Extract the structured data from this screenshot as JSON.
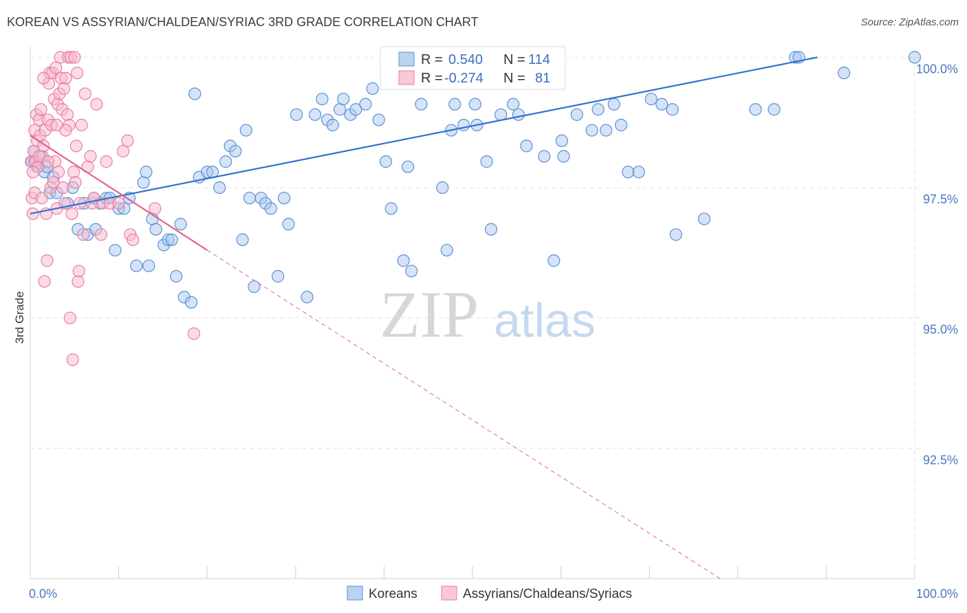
{
  "title": "KOREAN VS ASSYRIAN/CHALDEAN/SYRIAC 3RD GRADE CORRELATION CHART",
  "source": "Source: ZipAtlas.com",
  "watermark": {
    "zip": "ZIP",
    "atlas": "atlas"
  },
  "colors": {
    "koreans_fill": "#a9c8ee",
    "koreans_stroke": "#5b8fd6",
    "koreans_line": "#2f72cf",
    "assyrian_fill": "#f7b9cd",
    "assyrian_stroke": "#e87ea0",
    "assyrian_line": "#e0628f",
    "grid": "#e3e3e3",
    "tick_label": "#4a78c2"
  },
  "legend": {
    "rows": [
      {
        "r_label": "R = ",
        "r_value": "0.540",
        "n_label": "N = ",
        "n_value": "114"
      },
      {
        "r_label": "R = ",
        "r_value": "-0.274",
        "n_label": "N = ",
        "n_value": "81"
      }
    ]
  },
  "bottom_legend": [
    "Koreans",
    "Assyrians/Chaldeans/Syriacs"
  ],
  "chart_data": {
    "type": "scatter",
    "xlabel": "",
    "ylabel": "3rd Grade",
    "x_tick_labels": [
      "0.0%",
      "100.0%"
    ],
    "y_tick_labels": [
      "100.0%",
      "97.5%",
      "95.0%",
      "92.5%"
    ],
    "y_ticks": [
      100.0,
      97.5,
      95.0,
      92.5
    ],
    "xlim": [
      0,
      100
    ],
    "ylim": [
      90.0,
      100.15
    ],
    "grid": true,
    "series": [
      {
        "name": "Koreans",
        "r": 0.54,
        "n": 114,
        "trend": {
          "x": [
            0,
            89
          ],
          "y": [
            97.0,
            100.0
          ],
          "style": "solid"
        },
        "points": [
          [
            0.2,
            98.0
          ],
          [
            0.4,
            98.2
          ],
          [
            0.5,
            98.0
          ],
          [
            0.8,
            97.9
          ],
          [
            1.2,
            98.1
          ],
          [
            1.6,
            97.8
          ],
          [
            1.9,
            97.9
          ],
          [
            2.2,
            97.4
          ],
          [
            2.6,
            97.7
          ],
          [
            3.0,
            97.4
          ],
          [
            4.2,
            97.2
          ],
          [
            4.8,
            97.5
          ],
          [
            5.4,
            96.7
          ],
          [
            6.1,
            97.2
          ],
          [
            6.5,
            96.6
          ],
          [
            7.2,
            97.3
          ],
          [
            7.4,
            96.7
          ],
          [
            7.9,
            97.2
          ],
          [
            8.6,
            97.3
          ],
          [
            9.0,
            97.3
          ],
          [
            9.6,
            96.3
          ],
          [
            10.0,
            97.1
          ],
          [
            10.6,
            97.1
          ],
          [
            11.2,
            97.3
          ],
          [
            12.0,
            96.0
          ],
          [
            12.8,
            97.6
          ],
          [
            13.1,
            97.8
          ],
          [
            13.4,
            96.0
          ],
          [
            13.8,
            96.9
          ],
          [
            14.2,
            96.7
          ],
          [
            15.1,
            96.4
          ],
          [
            15.6,
            96.5
          ],
          [
            16.0,
            96.5
          ],
          [
            16.5,
            95.8
          ],
          [
            17.0,
            96.8
          ],
          [
            17.4,
            95.4
          ],
          [
            18.2,
            95.3
          ],
          [
            18.6,
            99.3
          ],
          [
            19.1,
            97.7
          ],
          [
            20.0,
            97.8
          ],
          [
            20.6,
            97.8
          ],
          [
            21.4,
            97.5
          ],
          [
            22.1,
            98.0
          ],
          [
            22.6,
            98.3
          ],
          [
            23.2,
            98.2
          ],
          [
            24.0,
            96.5
          ],
          [
            24.4,
            98.6
          ],
          [
            24.8,
            97.3
          ],
          [
            25.3,
            95.6
          ],
          [
            26.1,
            97.3
          ],
          [
            26.6,
            97.2
          ],
          [
            27.2,
            97.1
          ],
          [
            28.0,
            95.8
          ],
          [
            28.7,
            97.3
          ],
          [
            29.2,
            96.8
          ],
          [
            30.1,
            98.9
          ],
          [
            31.3,
            95.4
          ],
          [
            32.2,
            98.9
          ],
          [
            33.0,
            99.2
          ],
          [
            33.6,
            98.8
          ],
          [
            34.2,
            98.7
          ],
          [
            35.0,
            99.0
          ],
          [
            35.4,
            99.2
          ],
          [
            36.2,
            98.9
          ],
          [
            36.8,
            99.0
          ],
          [
            37.9,
            99.1
          ],
          [
            38.7,
            99.4
          ],
          [
            39.4,
            98.8
          ],
          [
            40.2,
            98.0
          ],
          [
            40.8,
            97.1
          ],
          [
            41.6,
            100.0
          ],
          [
            42.2,
            96.1
          ],
          [
            42.7,
            97.9
          ],
          [
            43.1,
            95.9
          ],
          [
            44.2,
            99.1
          ],
          [
            44.9,
            100.0
          ],
          [
            45.7,
            100.0
          ],
          [
            46.4,
            100.0
          ],
          [
            46.6,
            97.5
          ],
          [
            47.1,
            96.3
          ],
          [
            47.6,
            98.6
          ],
          [
            48.0,
            99.1
          ],
          [
            49.0,
            98.7
          ],
          [
            50.3,
            99.1
          ],
          [
            50.5,
            98.7
          ],
          [
            51.6,
            98.0
          ],
          [
            52.1,
            96.7
          ],
          [
            53.2,
            98.9
          ],
          [
            54.6,
            99.1
          ],
          [
            55.2,
            98.9
          ],
          [
            56.1,
            98.3
          ],
          [
            58.1,
            98.1
          ],
          [
            59.2,
            96.1
          ],
          [
            60.1,
            98.4
          ],
          [
            60.3,
            98.1
          ],
          [
            61.8,
            98.9
          ],
          [
            63.5,
            98.6
          ],
          [
            64.2,
            99.0
          ],
          [
            65.1,
            98.6
          ],
          [
            66.0,
            99.1
          ],
          [
            66.8,
            98.7
          ],
          [
            67.6,
            97.8
          ],
          [
            68.8,
            97.8
          ],
          [
            70.2,
            99.2
          ],
          [
            71.4,
            99.1
          ],
          [
            72.6,
            99.0
          ],
          [
            73.0,
            96.6
          ],
          [
            76.2,
            96.9
          ],
          [
            82.0,
            99.0
          ],
          [
            84.1,
            99.0
          ],
          [
            86.5,
            100.0
          ],
          [
            86.9,
            100.0
          ],
          [
            92.0,
            99.7
          ],
          [
            100.0,
            100.0
          ]
        ]
      },
      {
        "name": "Assyrians/Chaldeans/Syriacs",
        "r": -0.274,
        "n": 81,
        "trend": {
          "x": [
            0,
            20
          ],
          "y": [
            98.5,
            96.3
          ],
          "style": "solid",
          "extension": {
            "x": [
              20,
              78
            ],
            "y": [
              96.3,
              90.0
            ],
            "style": "dashed"
          }
        },
        "points": [
          [
            0.1,
            98.0
          ],
          [
            0.2,
            97.3
          ],
          [
            0.3,
            97.0
          ],
          [
            0.4,
            98.2
          ],
          [
            0.5,
            98.6
          ],
          [
            0.5,
            97.4
          ],
          [
            0.6,
            98.0
          ],
          [
            0.7,
            98.9
          ],
          [
            0.8,
            98.4
          ],
          [
            0.9,
            97.9
          ],
          [
            1.0,
            98.8
          ],
          [
            1.1,
            98.5
          ],
          [
            1.2,
            99.0
          ],
          [
            1.3,
            97.3
          ],
          [
            1.4,
            98.1
          ],
          [
            1.5,
            98.3
          ],
          [
            1.6,
            95.7
          ],
          [
            1.7,
            98.6
          ],
          [
            1.8,
            97.0
          ],
          [
            1.9,
            96.1
          ],
          [
            2.0,
            98.8
          ],
          [
            2.1,
            99.5
          ],
          [
            2.2,
            99.7
          ],
          [
            2.3,
            97.5
          ],
          [
            2.4,
            98.7
          ],
          [
            2.5,
            99.7
          ],
          [
            2.6,
            97.6
          ],
          [
            2.7,
            99.2
          ],
          [
            2.8,
            98.0
          ],
          [
            2.9,
            99.8
          ],
          [
            3.0,
            98.7
          ],
          [
            3.1,
            99.1
          ],
          [
            3.2,
            97.8
          ],
          [
            3.3,
            99.3
          ],
          [
            3.4,
            100.0
          ],
          [
            3.5,
            99.6
          ],
          [
            3.6,
            99.0
          ],
          [
            3.7,
            97.5
          ],
          [
            3.8,
            99.4
          ],
          [
            3.9,
            97.2
          ],
          [
            4.0,
            99.6
          ],
          [
            4.2,
            98.9
          ],
          [
            4.3,
            100.0
          ],
          [
            4.4,
            98.7
          ],
          [
            4.5,
            95.0
          ],
          [
            4.6,
            100.0
          ],
          [
            4.7,
            97.0
          ],
          [
            4.8,
            94.2
          ],
          [
            4.9,
            97.8
          ],
          [
            5.0,
            100.0
          ],
          [
            5.1,
            97.6
          ],
          [
            5.2,
            98.3
          ],
          [
            5.3,
            99.7
          ],
          [
            5.4,
            95.7
          ],
          [
            5.5,
            95.9
          ],
          [
            5.6,
            97.2
          ],
          [
            5.8,
            98.7
          ],
          [
            6.0,
            96.6
          ],
          [
            6.2,
            99.3
          ],
          [
            6.5,
            97.9
          ],
          [
            6.8,
            98.1
          ],
          [
            7.0,
            97.2
          ],
          [
            7.2,
            97.3
          ],
          [
            7.5,
            99.1
          ],
          [
            8.0,
            96.6
          ],
          [
            8.2,
            97.2
          ],
          [
            8.6,
            98.0
          ],
          [
            9.0,
            97.2
          ],
          [
            10.0,
            97.2
          ],
          [
            10.5,
            98.2
          ],
          [
            11.0,
            98.4
          ],
          [
            11.3,
            96.6
          ],
          [
            11.6,
            96.5
          ],
          [
            14.1,
            97.1
          ],
          [
            18.5,
            94.7
          ],
          [
            0.3,
            97.8
          ],
          [
            1.0,
            98.1
          ],
          [
            2.0,
            98.0
          ],
          [
            3.0,
            97.1
          ],
          [
            4.0,
            98.6
          ],
          [
            1.5,
            99.6
          ]
        ]
      }
    ]
  }
}
